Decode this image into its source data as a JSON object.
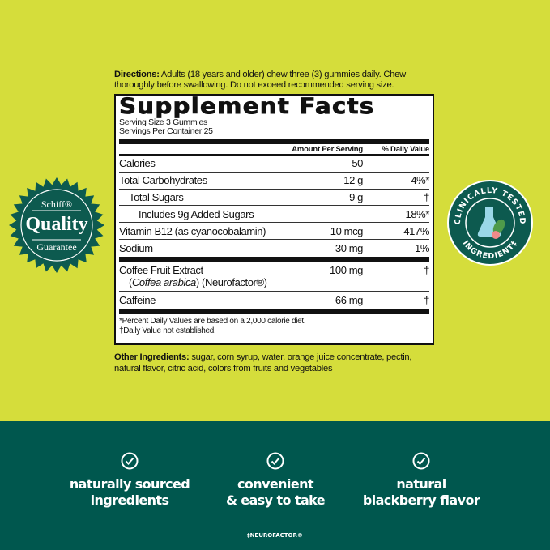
{
  "colors": {
    "background": "#d5dd3b",
    "band": "#00574e",
    "badge": "#0d5a4f"
  },
  "directions": {
    "label": "Directions:",
    "text": " Adults (18 years and older) chew three (3) gummies daily. Chew thoroughly before swallowing. Do not exceed recommended serving size."
  },
  "facts": {
    "title": "Supplement Facts",
    "serving_size": "Serving Size 3 Gummies",
    "servings_per_container": "Servings Per Container 25",
    "header": {
      "amount": "Amount Per Serving",
      "dv": "% Daily Value"
    },
    "rows": [
      {
        "name": "Calories",
        "amount": "50",
        "dv": ""
      },
      {
        "name": "Total Carbohydrates",
        "amount": "12 g",
        "dv": "4%*"
      },
      {
        "name": "Total Sugars",
        "amount": "9 g",
        "dv": "†"
      },
      {
        "name": "Includes 9g Added Sugars",
        "amount": "",
        "dv": "18%*"
      },
      {
        "name": "Vitamin B12 (as cyanocobalamin)",
        "amount": "10 mcg",
        "dv": "417%"
      },
      {
        "name": "Sodium",
        "amount": "30 mg",
        "dv": "1%"
      }
    ],
    "rows2": [
      {
        "name": "Coffee Fruit Extract",
        "sub_italic": "Coffea arabica",
        "sub_rest": ") (Neurofactor®)",
        "sub_open": "(",
        "amount": "100 mg",
        "dv": "†"
      },
      {
        "name": "Caffeine",
        "amount": "66 mg",
        "dv": "†"
      }
    ],
    "footnote1": "*Percent Daily Values are based on a 2,000 calorie diet.",
    "footnote2": "†Daily Value not established."
  },
  "other": {
    "label": "Other Ingredients:",
    "text": " sugar, corn syrup, water, orange juice concentrate, pectin, natural flavor, citric acid, colors from fruits and vegetables"
  },
  "badge_left": {
    "brand": "Schiff®",
    "main": "Quality",
    "sub": "Guarantee"
  },
  "badge_right": {
    "text": "CLINICALLY TESTED",
    "bottom": "INGREDIENT‡",
    "icon": "flask-leaf-icon"
  },
  "features": [
    {
      "icon": "check-circle-icon",
      "line1": "naturally sourced",
      "line2": "ingredients"
    },
    {
      "icon": "check-circle-icon",
      "line1": "convenient",
      "line2": "& easy to take"
    },
    {
      "icon": "check-circle-icon",
      "line1": "natural",
      "line2": "blackberry flavor"
    }
  ],
  "footnote": "‡NEUROFACTOR®"
}
